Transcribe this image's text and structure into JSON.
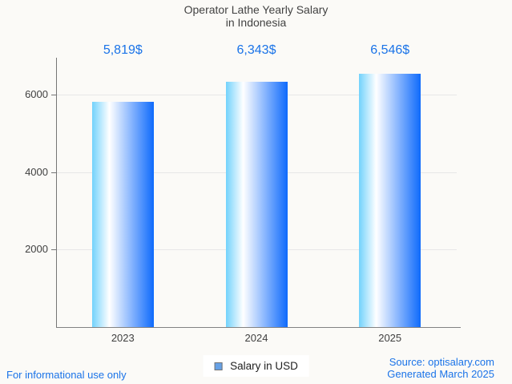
{
  "title": {
    "line1": "Operator Lathe Yearly Salary",
    "line2": "in Indonesia"
  },
  "chart_data": {
    "type": "bar",
    "title": "Operator Lathe Yearly Salary in Indonesia",
    "categories": [
      "2023",
      "2024",
      "2025"
    ],
    "series": [
      {
        "name": "Salary in USD",
        "values": [
          5819,
          6343,
          6546
        ]
      }
    ],
    "value_labels": [
      "5,819$",
      "6,343$",
      "6,546$"
    ],
    "xlabel": "",
    "ylabel": "",
    "ylim": [
      0,
      6960
    ],
    "yticks": [
      2000,
      4000,
      6000
    ],
    "grid": true,
    "legend_position": "bottom"
  },
  "footer": {
    "left": "For informational use only",
    "source": "Source: optisalary.com",
    "generated": "Generated March 2025"
  },
  "colors": {
    "accent_blue": "#1a73e8",
    "title_text": "#424242",
    "axis_text": "#404040",
    "axis_line": "#757575",
    "gridline": "#e7e7e7",
    "background": "#fbfaf7",
    "bar_gradient_left": "#72d2fc",
    "bar_gradient_mid": "#ffffff",
    "bar_gradient_right": "#0e6afc",
    "legend_marker_fill": "#66a1e6",
    "legend_marker_border": "#737373"
  }
}
